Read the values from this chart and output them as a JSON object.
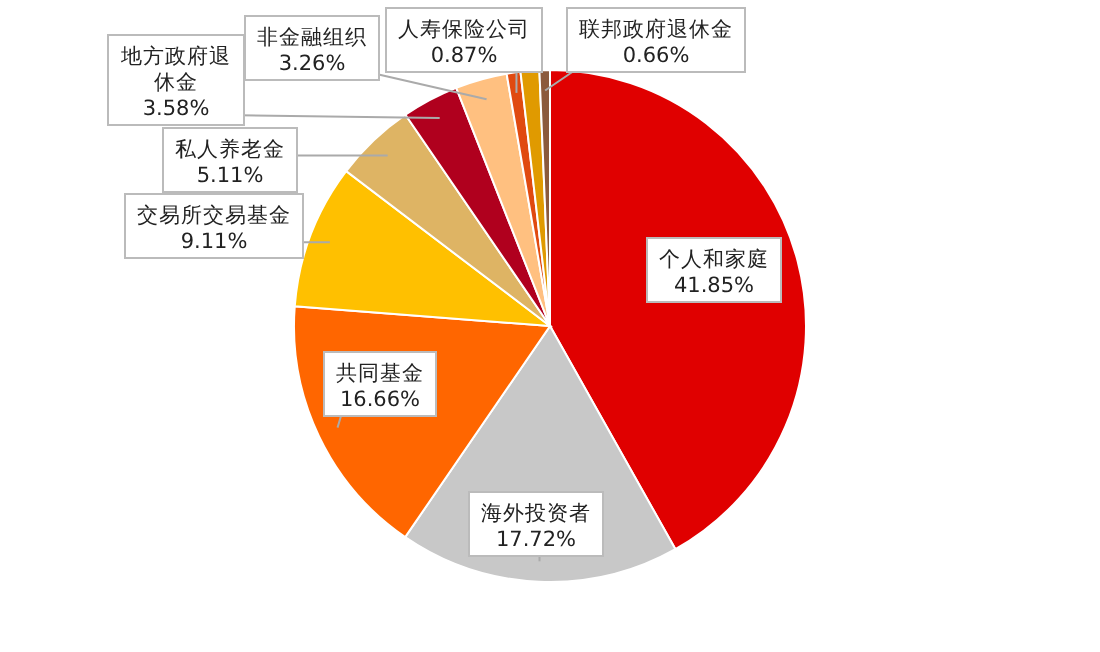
{
  "chart_data": {
    "type": "pie",
    "categories": [
      "个人和家庭",
      "海外投资者",
      "共同基金",
      "交易所交易基金",
      "私人养老金",
      "地方政府退休金",
      "非金融组织",
      "人寿保险公司",
      null,
      "联邦政府退休金"
    ],
    "values": [
      41.85,
      17.72,
      16.66,
      9.11,
      5.11,
      3.58,
      3.26,
      0.87,
      1.18,
      0.66
    ],
    "colors": [
      "#e00000",
      "#c8c8c8",
      "#ff6600",
      "#ffc000",
      "#deb464",
      "#b0001e",
      "#ffc080",
      "#e04a10",
      "#e09a00",
      "#8b5a3c"
    ],
    "value_labels": [
      "41.85%",
      "17.72%",
      "16.66%",
      "9.11%",
      "5.11%",
      "3.58%",
      "3.26%",
      "0.87%",
      null,
      "0.66%"
    ]
  }
}
